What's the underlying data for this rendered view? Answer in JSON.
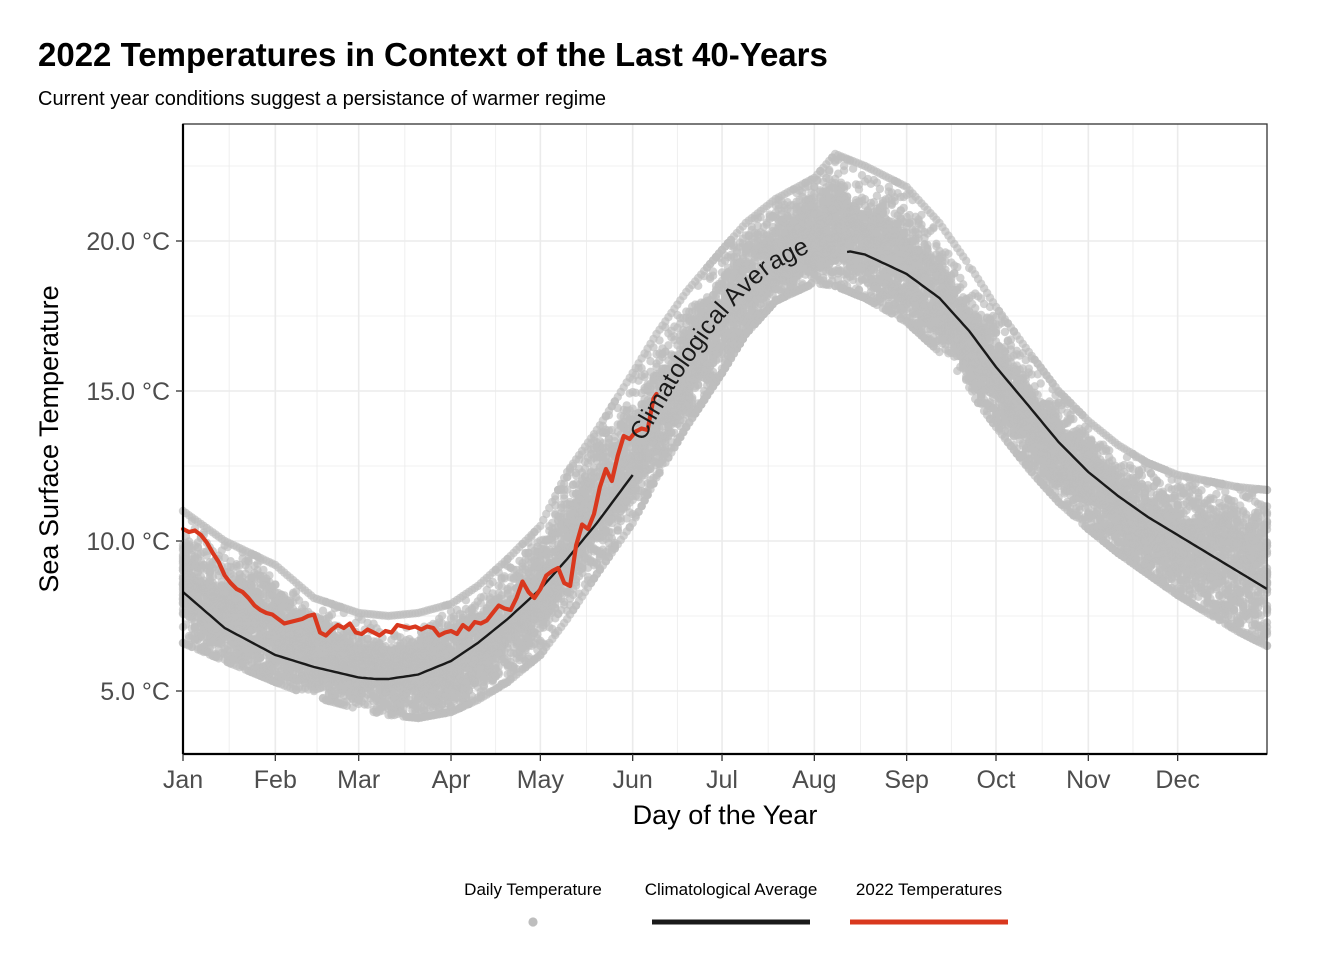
{
  "chart_data": {
    "type": "line",
    "title": "2022 Temperatures in Context of the Last 40-Years",
    "subtitle": "Current year conditions suggest a persistance of warmer regime",
    "xlabel": "Day of the Year",
    "ylabel": "Sea Surface Temperature",
    "xlim": [
      1,
      365
    ],
    "ylim": [
      2.9,
      23.9
    ],
    "x_ticks": [
      {
        "label": "Jan",
        "value": 1
      },
      {
        "label": "Feb",
        "value": 32
      },
      {
        "label": "Mar",
        "value": 60
      },
      {
        "label": "Apr",
        "value": 91
      },
      {
        "label": "May",
        "value": 121
      },
      {
        "label": "Jun",
        "value": 152
      },
      {
        "label": "Jul",
        "value": 182
      },
      {
        "label": "Aug",
        "value": 213
      },
      {
        "label": "Sep",
        "value": 244
      },
      {
        "label": "Oct",
        "value": 274
      },
      {
        "label": "Nov",
        "value": 305
      },
      {
        "label": "Dec",
        "value": 335
      }
    ],
    "y_ticks": [
      {
        "label": "5.0 °C",
        "value": 5
      },
      {
        "label": "10.0 °C",
        "value": 10
      },
      {
        "label": "15.0 °C",
        "value": 15
      },
      {
        "label": "20.0 °C",
        "value": 20
      }
    ],
    "grid": true,
    "legend_position": "bottom",
    "annotation": {
      "text": "Climatological Average",
      "x_start": 152,
      "x_end": 224
    },
    "series": [
      {
        "name": "Daily Temperature",
        "kind": "points",
        "color": "#bebebe",
        "years": 40,
        "spread_sd": 0.9,
        "envelope": {
          "x": [
            1,
            15,
            32,
            45,
            60,
            70,
            80,
            91,
            100,
            110,
            121,
            130,
            140,
            152,
            160,
            170,
            182,
            190,
            200,
            213,
            220,
            230,
            244,
            255,
            265,
            274,
            285,
            295,
            305,
            315,
            325,
            335,
            345,
            355,
            365
          ],
          "low": [
            6.6,
            6.0,
            5.3,
            4.8,
            4.4,
            4.2,
            4.1,
            4.3,
            4.7,
            5.3,
            6.2,
            7.4,
            8.9,
            10.6,
            12.1,
            13.8,
            15.6,
            16.9,
            18.0,
            18.6,
            18.5,
            18.1,
            17.3,
            16.3,
            15.0,
            13.8,
            12.4,
            11.3,
            10.4,
            9.6,
            8.9,
            8.2,
            7.6,
            7.0,
            6.5
          ],
          "high": [
            11.0,
            10.0,
            9.2,
            8.1,
            7.6,
            7.5,
            7.6,
            7.9,
            8.5,
            9.4,
            10.5,
            12.3,
            13.7,
            15.6,
            16.9,
            18.3,
            19.7,
            20.6,
            21.4,
            22.1,
            22.9,
            22.5,
            21.8,
            20.6,
            19.2,
            17.8,
            16.3,
            15.0,
            14.0,
            13.2,
            12.6,
            12.2,
            12.0,
            11.8,
            11.7
          ]
        }
      },
      {
        "name": "Climatological Average",
        "kind": "line",
        "color": "#1a1a1a",
        "x": [
          1,
          15,
          32,
          45,
          60,
          66,
          70,
          80,
          91,
          100,
          110,
          121,
          130,
          140,
          152,
          160,
          170,
          182,
          190,
          200,
          213,
          225,
          230,
          244,
          255,
          265,
          274,
          285,
          295,
          305,
          315,
          325,
          335,
          345,
          355,
          365
        ],
        "y": [
          8.3,
          7.1,
          6.2,
          5.8,
          5.45,
          5.4,
          5.4,
          5.55,
          6.0,
          6.6,
          7.4,
          8.4,
          9.4,
          10.6,
          12.2,
          13.6,
          15.3,
          17.0,
          17.9,
          18.8,
          19.45,
          19.65,
          19.55,
          18.9,
          18.1,
          17.0,
          15.8,
          14.5,
          13.3,
          12.3,
          11.5,
          10.8,
          10.2,
          9.6,
          9.0,
          8.4
        ],
        "label_gap": [
          152,
          224
        ]
      },
      {
        "name": "2022 Temperatures",
        "kind": "line",
        "color": "#d9381e",
        "x": [
          1,
          3,
          5,
          7,
          9,
          11,
          13,
          15,
          17,
          19,
          21,
          23,
          25,
          27,
          29,
          31,
          33,
          35,
          37,
          39,
          41,
          43,
          45,
          47,
          49,
          51,
          53,
          55,
          57,
          59,
          61,
          63,
          65,
          67,
          69,
          71,
          73,
          75,
          77,
          79,
          81,
          83,
          85,
          87,
          89,
          91,
          93,
          95,
          97,
          99,
          101,
          103,
          105,
          107,
          109,
          111,
          113,
          115,
          117,
          119,
          121,
          123,
          125,
          127,
          129,
          131,
          133,
          135,
          137,
          139,
          141,
          143,
          145,
          147,
          149,
          151,
          153,
          155,
          157,
          159,
          160
        ],
        "y": [
          10.4,
          10.3,
          10.35,
          10.2,
          9.95,
          9.6,
          9.3,
          8.85,
          8.6,
          8.4,
          8.3,
          8.1,
          7.85,
          7.7,
          7.6,
          7.55,
          7.4,
          7.25,
          7.3,
          7.35,
          7.4,
          7.5,
          7.55,
          6.95,
          6.85,
          7.05,
          7.2,
          7.1,
          7.25,
          6.95,
          6.9,
          7.05,
          6.95,
          6.85,
          7.0,
          6.95,
          7.2,
          7.15,
          7.1,
          7.15,
          7.05,
          7.15,
          7.1,
          6.85,
          6.95,
          7.0,
          6.9,
          7.2,
          7.05,
          7.3,
          7.25,
          7.35,
          7.6,
          7.85,
          7.75,
          7.7,
          8.1,
          8.65,
          8.3,
          8.1,
          8.4,
          8.85,
          9.0,
          9.1,
          8.6,
          8.5,
          9.85,
          10.55,
          10.4,
          10.9,
          11.8,
          12.4,
          12.0,
          12.85,
          13.5,
          13.4,
          13.65,
          13.75,
          13.7,
          14.75,
          14.9
        ]
      }
    ]
  }
}
